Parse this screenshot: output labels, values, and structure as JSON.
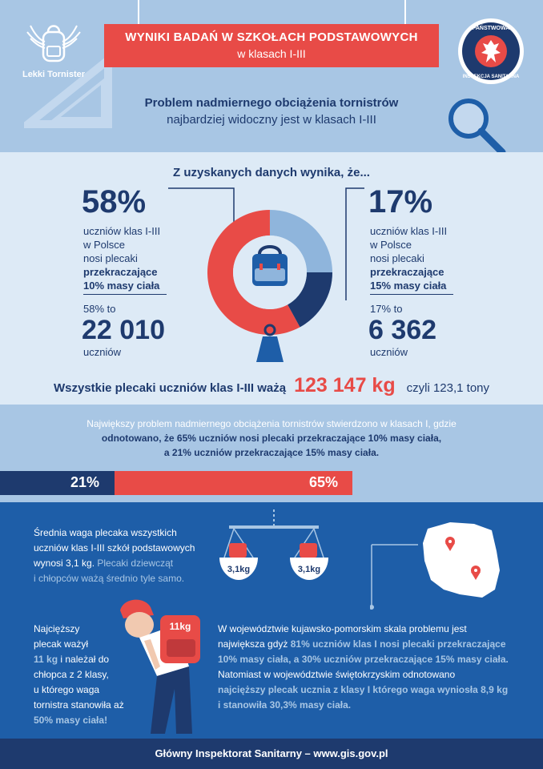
{
  "header": {
    "logo_text": "Lekki Tornister",
    "title_line1": "WYNIKI BADAŃ W SZKOŁACH PODSTAWOWYCH",
    "title_line2": "w klasach I-III",
    "seal_text": "PAŃSTWOWA INSPEKCJA SANITARNA",
    "problem_line1": "Problem nadmiernego obciążenia tornistrów",
    "problem_line2": "najbardziej widoczny jest w klasach I-III"
  },
  "stats": {
    "heading": "Z uzyskanych danych wynika, że...",
    "left": {
      "percent": "58%",
      "desc_lines": [
        "uczniów klas I-III",
        "w Polsce",
        "nosi plecaki"
      ],
      "desc_bold_lines": [
        "przekraczające",
        "10% masy ciała"
      ],
      "equiv_label": "58% to",
      "count": "22 010",
      "unit": "uczniów"
    },
    "right": {
      "percent": "17%",
      "desc_lines": [
        "uczniów klas I-III",
        "w Polsce",
        "nosi plecaki"
      ],
      "desc_bold_lines": [
        "przekraczające",
        "15% masy ciała"
      ],
      "equiv_label": "17% to",
      "count": "6 362",
      "unit": "uczniów"
    },
    "donut": {
      "red_fraction": 0.58,
      "navy_fraction": 0.17
    }
  },
  "weight": {
    "prefix": "Wszystkie plecaki uczniów klas I-III ważą",
    "value": "123 147 kg",
    "suffix": "czyli 123,1 tony"
  },
  "info": {
    "line1": "Największy problem nadmiernego obciążenia tornistrów stwierdzono w klasach I, gdzie",
    "line2": "odnotowano, że 65% uczniów nosi plecaki przekraczające 10% masy ciała,",
    "line3": "a 21% uczniów przekraczające 15% masy ciała."
  },
  "bar": {
    "label_21": "21%",
    "label_65": "65%",
    "navy_fraction": 0.21,
    "red_fraction": 0.65
  },
  "average": {
    "line1": "Średnia waga plecaka wszystkich",
    "line2": "uczniów klas I-III szkół podstawowych",
    "line3_plain": "wynosi 3,1 kg.",
    "line3_highlight": "Plecaki dziewcząt",
    "line4_highlight": "i chłopców ważą średnio tyle samo.",
    "scale_left_label": "3,1kg",
    "scale_right_label": "3,1kg"
  },
  "heaviest": {
    "lines": [
      "Najcięższy",
      "plecak ważył"
    ],
    "weight_highlight": "11 kg",
    "after_weight": "i należał do",
    "lines2": [
      "chłopca z 2 klasy,",
      "u którego waga",
      "tornistra stanowiła aż"
    ],
    "final_highlight": "50% masy ciała!",
    "backpack_label": "11kg"
  },
  "regions": {
    "line1": "W województwie kujawsko-pomorskim skala problemu jest",
    "line2_plain": "największa gdyż",
    "line2_highlight": "81% uczniów klas I nosi plecaki przekraczające",
    "line3_highlight": "10% masy ciała, a 30% uczniów przekraczające 15% masy ciała.",
    "line4": "Natomiast w województwie świętokrzyskim odnotowano",
    "line5_highlight": "najcięższy plecak ucznia z klasy I którego waga wyniosła 8,9 kg",
    "line6_highlight": "i stanowiła 30,3% masy ciała."
  },
  "footer": {
    "text": "Główny Inspektorat Sanitarny – www.gis.gov.pl"
  },
  "colors": {
    "navy": "#1e3a6e",
    "red": "#e84b47",
    "light_blue": "#a8c6e4",
    "pale_blue": "#ddeaf6",
    "mid_blue": "#1e5ea8"
  }
}
